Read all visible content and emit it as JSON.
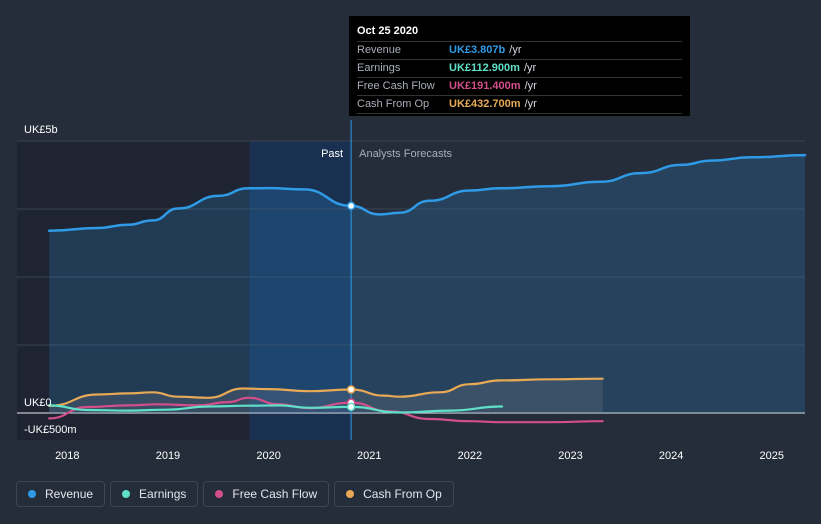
{
  "chart_data": {
    "type": "line",
    "title": "",
    "y_unit": "UK£",
    "ylim": [
      -500,
      5000
    ],
    "y_tick_labels": [
      {
        "value": 5000,
        "label": "UK£5b"
      },
      {
        "value": 0,
        "label": "UK£0"
      },
      {
        "value": -500,
        "label": "-UK£500m"
      }
    ],
    "xlim": [
      2017.5,
      2025.33
    ],
    "x_tick_labels": [
      "2018",
      "2019",
      "2020",
      "2021",
      "2022",
      "2023",
      "2024",
      "2025"
    ],
    "x_ticks": [
      2018,
      2019,
      2020,
      2021,
      2022,
      2023,
      2024,
      2025
    ],
    "past_label": "Past",
    "forecast_label": "Analysts Forecasts",
    "past_end": 2020.82,
    "shade_start": 2019.81,
    "series": [
      {
        "name": "Revenue",
        "color": "#2f9be6",
        "x": [
          2017.82,
          2018.3,
          2018.6,
          2018.85,
          2019.1,
          2019.5,
          2019.8,
          2020.0,
          2020.35,
          2020.82,
          2021.1,
          2021.3,
          2021.6,
          2022.0,
          2022.3,
          2022.8,
          2023.3,
          2023.7,
          2024.1,
          2024.4,
          2024.8,
          2025.33
        ],
        "values": [
          3350,
          3400,
          3460,
          3540,
          3760,
          3990,
          4130,
          4135,
          4110,
          3807,
          3650,
          3680,
          3900,
          4090,
          4130,
          4170,
          4250,
          4410,
          4560,
          4640,
          4700,
          4740
        ]
      },
      {
        "name": "Earnings",
        "color": "#5fe0c8",
        "x": [
          2017.82,
          2018.2,
          2018.6,
          2019.0,
          2019.4,
          2019.8,
          2020.1,
          2020.4,
          2020.82,
          2021.3,
          2021.8,
          2022.32
        ],
        "values": [
          140,
          55,
          45,
          60,
          120,
          135,
          140,
          95,
          112.9,
          10,
          45,
          120
        ]
      },
      {
        "name": "Free Cash Flow",
        "color": "#d34f8a",
        "x": [
          2017.82,
          2018.2,
          2018.6,
          2018.9,
          2019.3,
          2019.6,
          2019.8,
          2020.1,
          2020.4,
          2020.82,
          2021.2,
          2021.6,
          2022.0,
          2022.3,
          2022.8,
          2023.32
        ],
        "values": [
          -100,
          110,
          140,
          160,
          140,
          200,
          280,
          160,
          90,
          191.4,
          30,
          -110,
          -150,
          -170,
          -170,
          -150
        ]
      },
      {
        "name": "Cash From Op",
        "color": "#e8a956",
        "x": [
          2017.82,
          2018.3,
          2018.6,
          2018.85,
          2019.1,
          2019.4,
          2019.75,
          2020.0,
          2020.4,
          2020.82,
          2021.15,
          2021.3,
          2021.7,
          2022.0,
          2022.3,
          2022.8,
          2023.32
        ],
        "values": [
          130,
          340,
          360,
          380,
          300,
          280,
          450,
          440,
          400,
          432.7,
          320,
          300,
          380,
          530,
          600,
          620,
          630
        ]
      }
    ]
  },
  "tooltip": {
    "date": "Oct 25 2020",
    "rows": [
      {
        "label": "Revenue",
        "value": "UK£3.807b",
        "unit": "/yr",
        "color": "#2f9be6"
      },
      {
        "label": "Earnings",
        "value": "UK£112.900m",
        "unit": "/yr",
        "color": "#5fe0c8"
      },
      {
        "label": "Free Cash Flow",
        "value": "UK£191.400m",
        "unit": "/yr",
        "color": "#d34f8a"
      },
      {
        "label": "Cash From Op",
        "value": "UK£432.700m",
        "unit": "/yr",
        "color": "#e8a956"
      }
    ]
  },
  "legend": [
    {
      "label": "Revenue",
      "color": "#2f9be6"
    },
    {
      "label": "Earnings",
      "color": "#5fe0c8"
    },
    {
      "label": "Free Cash Flow",
      "color": "#d34f8a"
    },
    {
      "label": "Cash From Op",
      "color": "#e8a956"
    }
  ]
}
